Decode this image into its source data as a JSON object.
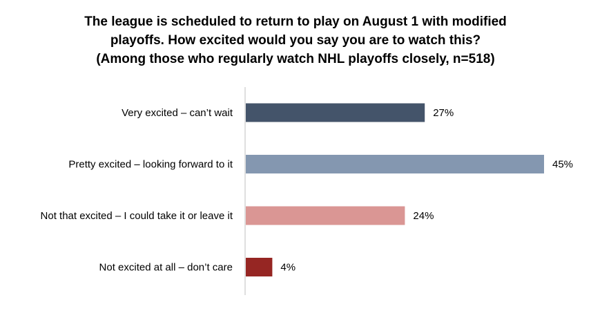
{
  "chart_data": {
    "type": "bar",
    "orientation": "horizontal",
    "title_lines": [
      "The league is scheduled to return to play on August 1 with modified",
      "playoffs. How excited would you say you are to watch this?",
      "(Among those who regularly watch NHL playoffs closely, n=518)"
    ],
    "categories": [
      "Very excited – can’t wait",
      "Pretty excited – looking forward to it",
      "Not that excited – I could take it or leave it",
      "Not excited at all – don’t care"
    ],
    "values": [
      27,
      45,
      24,
      4
    ],
    "value_labels": [
      "27%",
      "45%",
      "24%",
      "4%"
    ],
    "bar_colors": [
      "#44546A",
      "#8497B0",
      "#DA9694",
      "#962623"
    ],
    "axis_line_color": "#BFBFBF",
    "xlim": [
      0,
      45
    ],
    "grid": false,
    "legend": "none",
    "xlabel": "",
    "ylabel": ""
  }
}
